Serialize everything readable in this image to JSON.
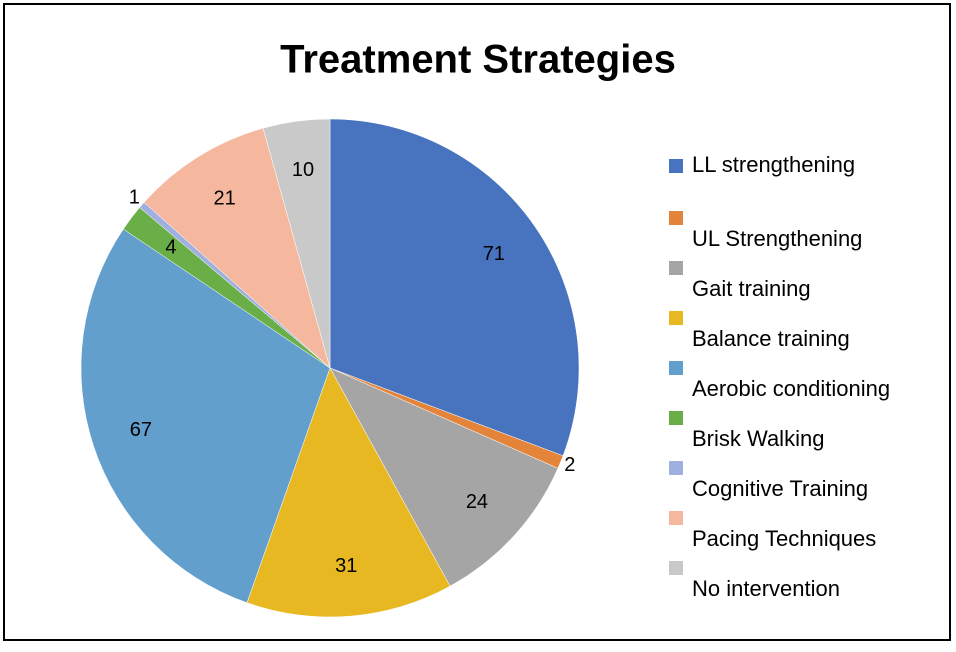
{
  "chart_data": {
    "type": "pie",
    "title": "Treatment Strategies",
    "categories": [
      "LL strengthening",
      "UL Strengthening",
      "Gait training",
      "Balance training",
      "Aerobic conditioning",
      "Brisk Walking",
      "Cognitive Training",
      "Pacing Techniques",
      "No intervention"
    ],
    "values": [
      71,
      2,
      24,
      31,
      67,
      4,
      1,
      21,
      10
    ],
    "colors": [
      "#4874bf",
      "#e4833a",
      "#a5a5a5",
      "#e8b823",
      "#629fcd",
      "#6aae48",
      "#9fb0e0",
      "#f5b89e",
      "#c9c9c9"
    ],
    "legend": "right"
  }
}
